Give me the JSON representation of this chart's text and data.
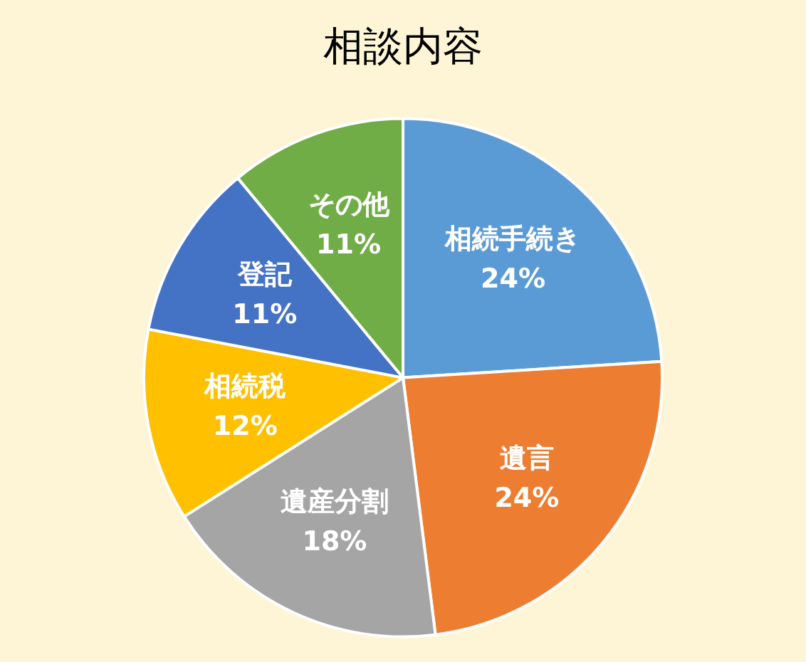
{
  "chart_data": {
    "type": "pie",
    "title": "相談内容",
    "categories": [
      "相続手続き",
      "遺言",
      "遺産分割",
      "相続税",
      "登記",
      "その他"
    ],
    "values": [
      24,
      24,
      18,
      12,
      11,
      11
    ],
    "value_labels": [
      "24%",
      "24%",
      "18%",
      "12%",
      "11%",
      "11%"
    ],
    "colors": [
      "#5b9bd5",
      "#ed7d31",
      "#a5a5a5",
      "#ffc000",
      "#4472c4",
      "#70ad47"
    ],
    "legend": false
  }
}
